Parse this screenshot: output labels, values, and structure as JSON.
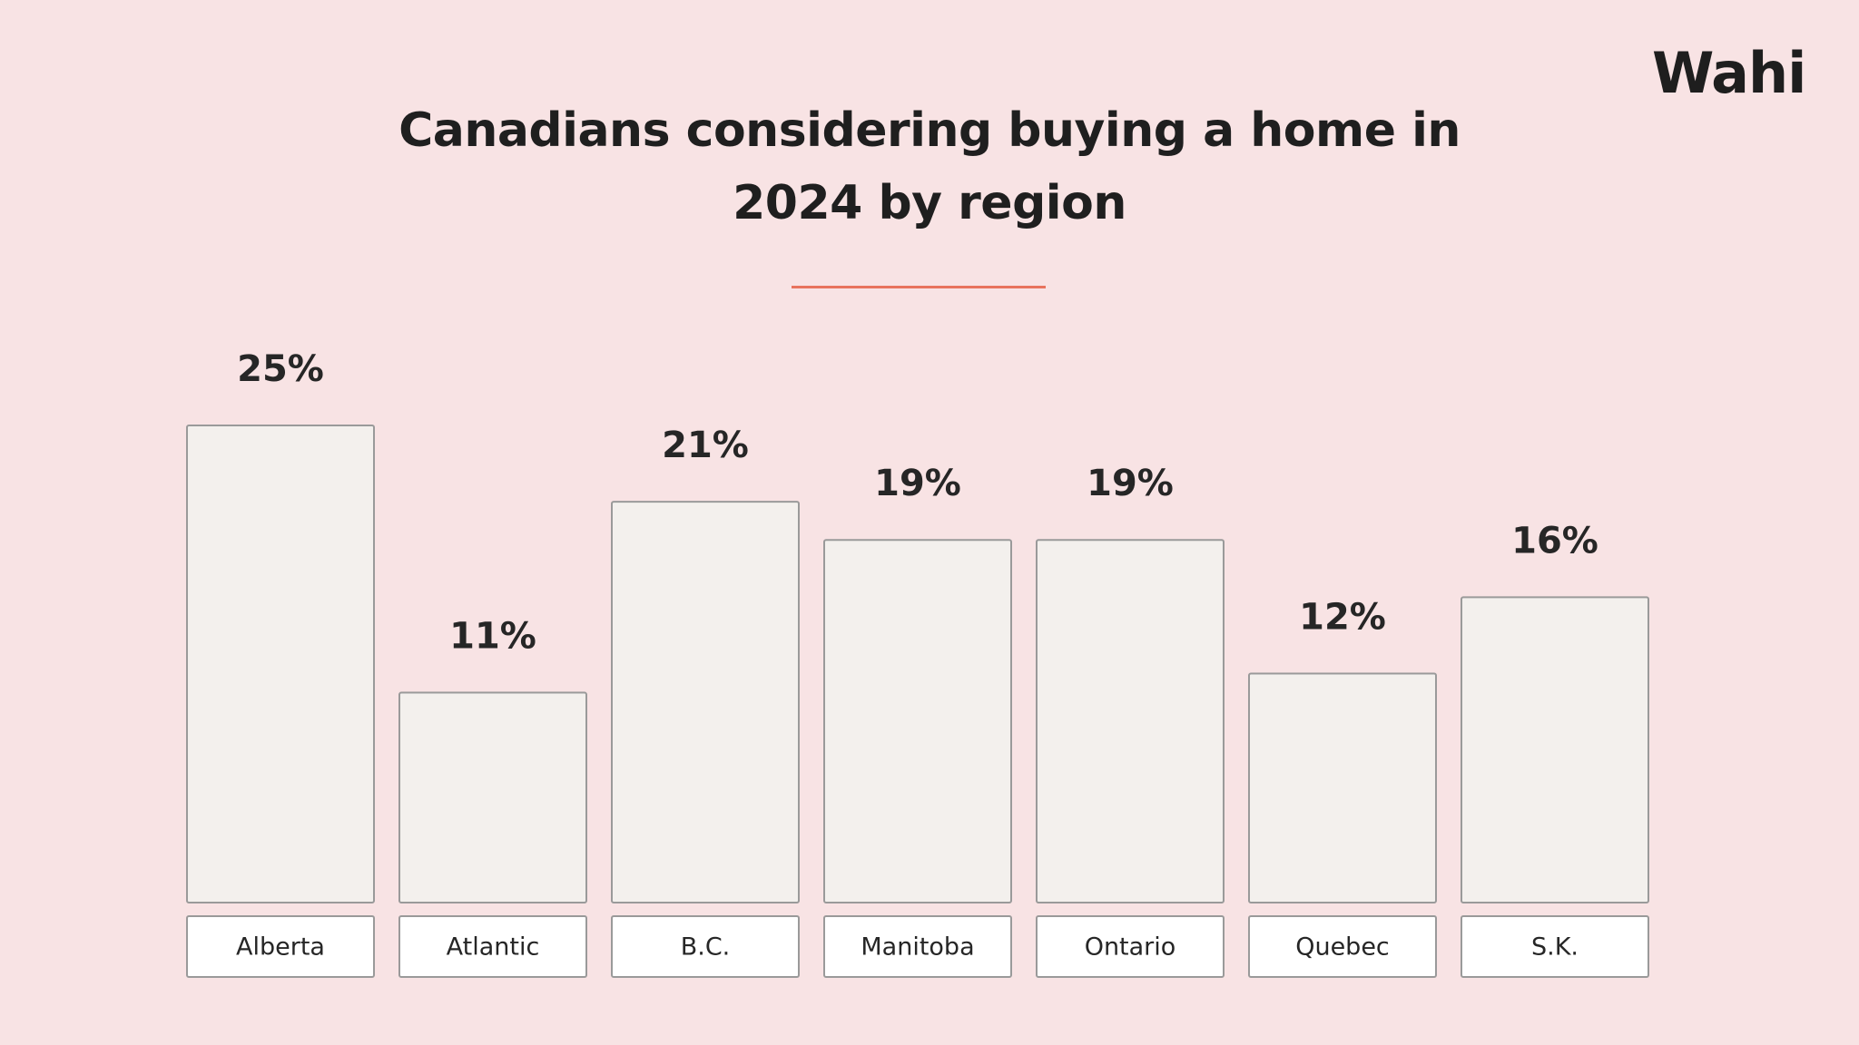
{
  "brand": "Wahi",
  "chart_data": {
    "type": "bar",
    "title": "Canadians considering buying a home in 2024 by region",
    "categories": [
      "Alberta",
      "Atlantic",
      "B.C.",
      "Manitoba",
      "Ontario",
      "Quebec",
      "S.K."
    ],
    "values": [
      25,
      11,
      21,
      19,
      19,
      12,
      16
    ],
    "value_labels": [
      "25%",
      "11%",
      "21%",
      "19%",
      "19%",
      "12%",
      "16%"
    ],
    "color": "#f3f0ed"
  }
}
